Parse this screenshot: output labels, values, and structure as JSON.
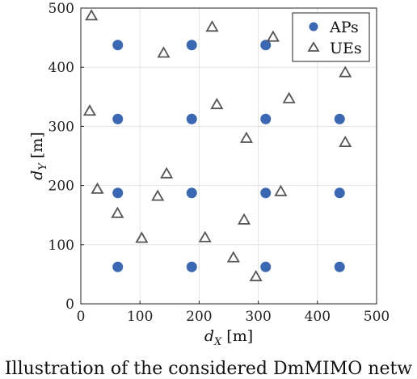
{
  "chart_data": {
    "type": "scatter",
    "xlabel": "d_X [m]",
    "ylabel": "d_Y [m]",
    "xlim": [
      0,
      500
    ],
    "ylim": [
      0,
      500
    ],
    "xticks": [
      0,
      100,
      200,
      300,
      400,
      500
    ],
    "yticks": [
      0,
      100,
      200,
      300,
      400,
      500
    ],
    "grid": true,
    "legend_position": "top-right",
    "series": [
      {
        "name": "APs",
        "marker": "circle",
        "color": "#3a68b5",
        "points": [
          [
            62.5,
            437.5
          ],
          [
            187.5,
            437.5
          ],
          [
            312.5,
            437.5
          ],
          [
            62.5,
            312.5
          ],
          [
            187.5,
            312.5
          ],
          [
            312.5,
            312.5
          ],
          [
            437.5,
            312.5
          ],
          [
            62.5,
            187.5
          ],
          [
            187.5,
            187.5
          ],
          [
            312.5,
            187.5
          ],
          [
            437.5,
            187.5
          ],
          [
            62.5,
            62.5
          ],
          [
            187.5,
            62.5
          ],
          [
            312.5,
            62.5
          ],
          [
            437.5,
            62.5
          ]
        ]
      },
      {
        "name": "UEs",
        "marker": "triangle",
        "color": "#555555",
        "points": [
          [
            18,
            487
          ],
          [
            140,
            424
          ],
          [
            222,
            468
          ],
          [
            325,
            451
          ],
          [
            447,
            391
          ],
          [
            15,
            326
          ],
          [
            230,
            337
          ],
          [
            352,
            347
          ],
          [
            280,
            280
          ],
          [
            447,
            273
          ],
          [
            28,
            194
          ],
          [
            145,
            220
          ],
          [
            130,
            182
          ],
          [
            338,
            190
          ],
          [
            62,
            153
          ],
          [
            103,
            111
          ],
          [
            210,
            112
          ],
          [
            276,
            142
          ],
          [
            258,
            78
          ],
          [
            296,
            46
          ]
        ]
      }
    ]
  },
  "caption": "Illustration of the considered DmMIMO netw"
}
